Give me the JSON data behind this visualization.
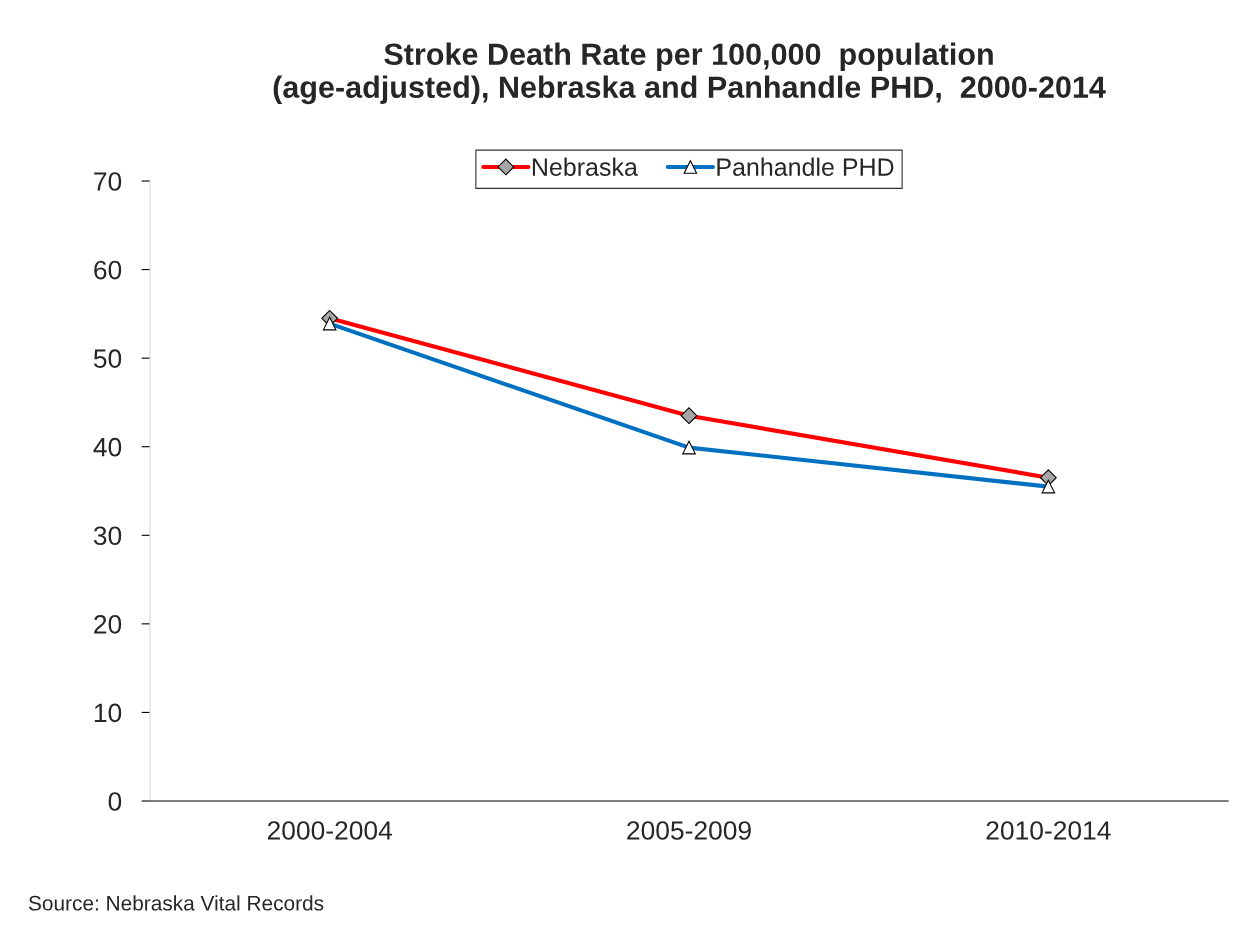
{
  "chart_data": {
    "type": "line",
    "title": "Stroke Death Rate per 100,000  population\n(age-adjusted), Nebraska and Panhandle PHD,  2000-2014",
    "categories": [
      "2000-2004",
      "2005-2009",
      "2010-2014"
    ],
    "series": [
      {
        "name": "Nebraska",
        "color": "#ff0000",
        "values": [
          54.5,
          43.5,
          36.5
        ],
        "marker": "diamond"
      },
      {
        "name": "Panhandle PHD",
        "color": "#0070c0",
        "values": [
          53.9,
          39.9,
          35.5
        ],
        "marker": "triangle"
      }
    ],
    "ylim": [
      0,
      70
    ],
    "yticks": [
      0,
      10,
      20,
      30,
      40,
      50,
      60,
      70
    ],
    "grid": false,
    "legend": "top",
    "annotations": [
      "Source: Nebraska Vital Records"
    ]
  }
}
